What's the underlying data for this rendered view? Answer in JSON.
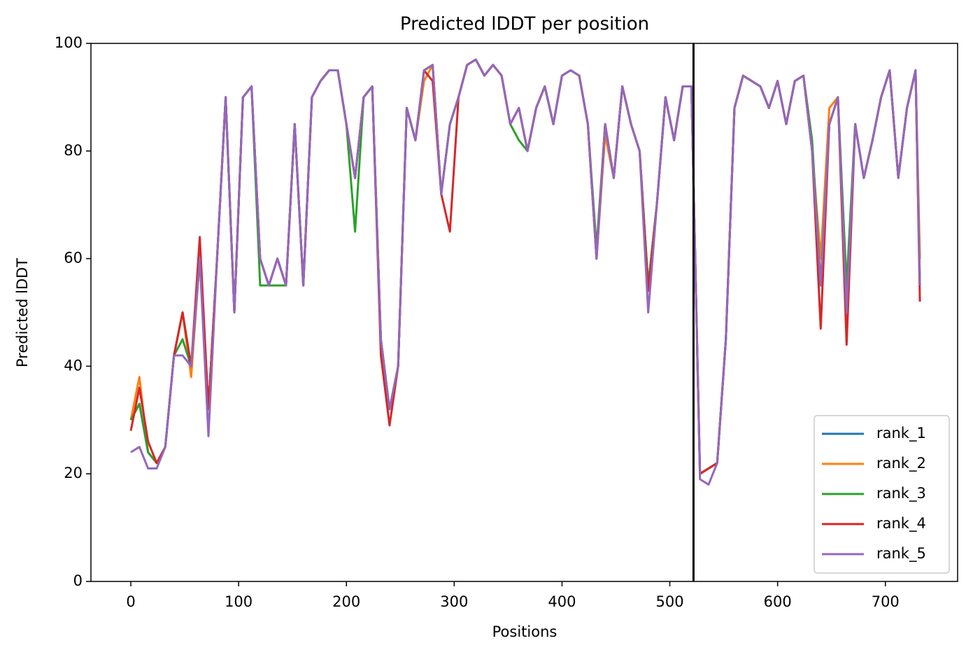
{
  "chart_data": {
    "type": "line",
    "title": "Predicted lDDT per position",
    "xlabel": "Positions",
    "ylabel": "Predicted lDDT",
    "x": [
      0,
      8,
      16,
      24,
      32,
      40,
      48,
      56,
      64,
      72,
      80,
      88,
      96,
      104,
      112,
      120,
      128,
      136,
      144,
      152,
      160,
      168,
      176,
      184,
      192,
      200,
      208,
      216,
      224,
      232,
      240,
      248,
      256,
      264,
      272,
      280,
      288,
      296,
      304,
      312,
      320,
      328,
      336,
      344,
      352,
      360,
      368,
      376,
      384,
      392,
      400,
      408,
      416,
      424,
      432,
      440,
      448,
      456,
      464,
      472,
      480,
      488,
      496,
      504,
      512,
      520,
      528,
      536,
      544,
      552,
      560,
      568,
      576,
      584,
      592,
      600,
      608,
      616,
      624,
      632,
      640,
      648,
      656,
      664,
      672,
      680,
      688,
      696,
      704,
      712,
      720,
      728,
      732
    ],
    "series": [
      {
        "name": "rank_1",
        "color": "#1f77b4",
        "values": [
          30,
          33,
          24,
          22,
          25,
          42,
          50,
          40,
          60,
          32,
          60,
          90,
          50,
          90,
          92,
          60,
          55,
          60,
          55,
          85,
          55,
          90,
          93,
          95,
          95,
          85,
          75,
          90,
          92,
          45,
          32,
          40,
          88,
          82,
          95,
          96,
          72,
          85,
          90,
          96,
          97,
          94,
          96,
          94,
          85,
          88,
          80,
          88,
          92,
          85,
          94,
          95,
          94,
          85,
          60,
          85,
          75,
          92,
          85,
          80,
          55,
          70,
          90,
          82,
          92,
          92,
          20,
          21,
          22,
          45,
          88,
          94,
          93,
          92,
          88,
          93,
          85,
          93,
          94,
          80,
          55,
          85,
          90,
          50,
          85,
          75,
          82,
          90,
          95,
          75,
          88,
          95,
          55
        ]
      },
      {
        "name": "rank_2",
        "color": "#ff7f0e",
        "values": [
          30,
          38,
          24,
          22,
          25,
          42,
          50,
          38,
          60,
          32,
          60,
          90,
          50,
          90,
          92,
          60,
          55,
          60,
          55,
          85,
          55,
          90,
          93,
          95,
          95,
          85,
          75,
          90,
          92,
          45,
          32,
          40,
          88,
          82,
          93,
          96,
          72,
          85,
          90,
          96,
          97,
          94,
          96,
          94,
          85,
          88,
          80,
          88,
          92,
          85,
          94,
          95,
          94,
          85,
          60,
          83,
          75,
          92,
          85,
          80,
          55,
          70,
          90,
          82,
          92,
          92,
          20,
          21,
          22,
          45,
          88,
          94,
          93,
          92,
          88,
          93,
          85,
          93,
          94,
          80,
          60,
          88,
          90,
          50,
          85,
          75,
          82,
          90,
          95,
          75,
          88,
          95,
          60
        ]
      },
      {
        "name": "rank_3",
        "color": "#2ca02c",
        "values": [
          30,
          33,
          24,
          22,
          25,
          42,
          45,
          40,
          60,
          32,
          60,
          90,
          50,
          90,
          92,
          55,
          55,
          55,
          55,
          85,
          55,
          90,
          93,
          95,
          95,
          85,
          65,
          90,
          92,
          45,
          32,
          40,
          88,
          82,
          95,
          96,
          72,
          85,
          90,
          96,
          97,
          94,
          96,
          94,
          85,
          82,
          80,
          88,
          92,
          85,
          94,
          95,
          94,
          85,
          62,
          85,
          75,
          92,
          85,
          80,
          55,
          70,
          90,
          82,
          92,
          92,
          20,
          21,
          22,
          45,
          88,
          94,
          93,
          92,
          88,
          93,
          85,
          93,
          94,
          82,
          55,
          85,
          90,
          55,
          85,
          75,
          82,
          90,
          95,
          75,
          88,
          95,
          55
        ]
      },
      {
        "name": "rank_4",
        "color": "#d62728",
        "values": [
          28,
          36,
          26,
          22,
          25,
          42,
          50,
          40,
          64,
          32,
          60,
          90,
          50,
          90,
          92,
          60,
          55,
          60,
          55,
          85,
          55,
          90,
          93,
          95,
          95,
          85,
          75,
          90,
          92,
          42,
          29,
          40,
          88,
          82,
          95,
          93,
          72,
          65,
          90,
          96,
          97,
          94,
          96,
          94,
          85,
          88,
          80,
          88,
          92,
          85,
          94,
          95,
          94,
          85,
          60,
          85,
          75,
          92,
          85,
          80,
          54,
          70,
          90,
          82,
          92,
          92,
          20,
          21,
          22,
          45,
          88,
          94,
          93,
          92,
          88,
          93,
          85,
          93,
          94,
          80,
          47,
          85,
          90,
          44,
          85,
          75,
          82,
          90,
          95,
          75,
          88,
          95,
          52
        ]
      },
      {
        "name": "rank_5",
        "color": "#9467bd",
        "values": [
          24,
          25,
          21,
          21,
          25,
          42,
          42,
          40,
          60,
          27,
          60,
          90,
          50,
          90,
          92,
          60,
          55,
          60,
          55,
          85,
          55,
          90,
          93,
          95,
          95,
          85,
          75,
          90,
          92,
          45,
          32,
          40,
          88,
          82,
          95,
          96,
          72,
          85,
          90,
          96,
          97,
          94,
          96,
          94,
          85,
          88,
          80,
          88,
          92,
          85,
          94,
          95,
          94,
          85,
          60,
          85,
          75,
          92,
          85,
          80,
          50,
          70,
          90,
          82,
          92,
          92,
          19,
          18,
          22,
          45,
          88,
          94,
          93,
          92,
          88,
          93,
          85,
          93,
          94,
          80,
          55,
          85,
          90,
          50,
          85,
          75,
          82,
          90,
          95,
          75,
          88,
          95,
          55
        ]
      }
    ],
    "vline": 522,
    "xlim": [
      -37,
      767
    ],
    "ylim": [
      0,
      100
    ],
    "xticks": [
      0,
      100,
      200,
      300,
      400,
      500,
      600,
      700
    ],
    "yticks": [
      0,
      20,
      40,
      60,
      80,
      100
    ],
    "legend": "lower right"
  }
}
